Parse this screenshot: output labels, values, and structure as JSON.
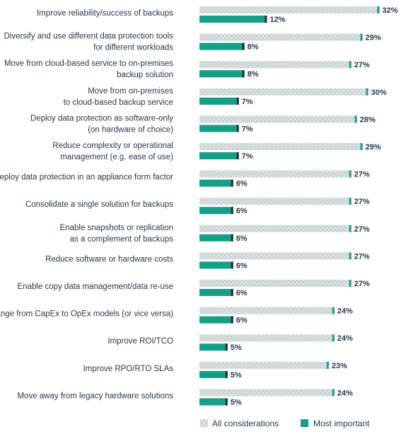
{
  "chart_data": {
    "type": "bar",
    "orientation": "horizontal",
    "categories": [
      [
        "Improve reliability/success of backups"
      ],
      [
        "Diversify and use different data protection tools",
        "for different workloads"
      ],
      [
        "Move from cloud-based service to on-premises",
        "backup solution"
      ],
      [
        "Move from on-premises",
        "to cloud-based backup service"
      ],
      [
        "Deploy data protection as software-only",
        "(on hardware of choice)"
      ],
      [
        "Reduce complexity or operational",
        "management (e.g. ease of use)"
      ],
      [
        "Deploy data protection in an appliance form factor"
      ],
      [
        "Consolidate a single solution for backups"
      ],
      [
        "Enable snapshots or replication",
        "as a complement of backups"
      ],
      [
        "Reduce software or hardware costs"
      ],
      [
        "Enable copy data management/data re-use"
      ],
      [
        "Change from CapEx to OpEx models (or vice versa)"
      ],
      [
        "Improve ROI/TCO"
      ],
      [
        "Improve RPO/RTO SLAs"
      ],
      [
        "Move away from legacy hardware solutions"
      ]
    ],
    "series": [
      {
        "name": "All considerations",
        "values": [
          32,
          29,
          27,
          30,
          28,
          29,
          27,
          27,
          27,
          27,
          27,
          24,
          24,
          23,
          24
        ],
        "labels": [
          "32%",
          "29%",
          "27%",
          "30%",
          "28%",
          "29%",
          "27%",
          "27%",
          "27%",
          "27%",
          "27%",
          "24%",
          "24%",
          "23%",
          "24%"
        ],
        "color": "#d9e0e0",
        "pattern": "crosshatch"
      },
      {
        "name": "Most important",
        "values": [
          12,
          8,
          8,
          7,
          7,
          7,
          6,
          6,
          6,
          6,
          6,
          6,
          5,
          5,
          5
        ],
        "labels": [
          "12%",
          "8%",
          "8%",
          "7%",
          "7%",
          "7%",
          "6%",
          "6%",
          "6%",
          "6%",
          "6%",
          "6%",
          "5%",
          "5%",
          "5%"
        ],
        "color": "#13a087"
      }
    ],
    "end_cap_color": "#222c38",
    "legend_position": "bottom",
    "grid": false
  }
}
